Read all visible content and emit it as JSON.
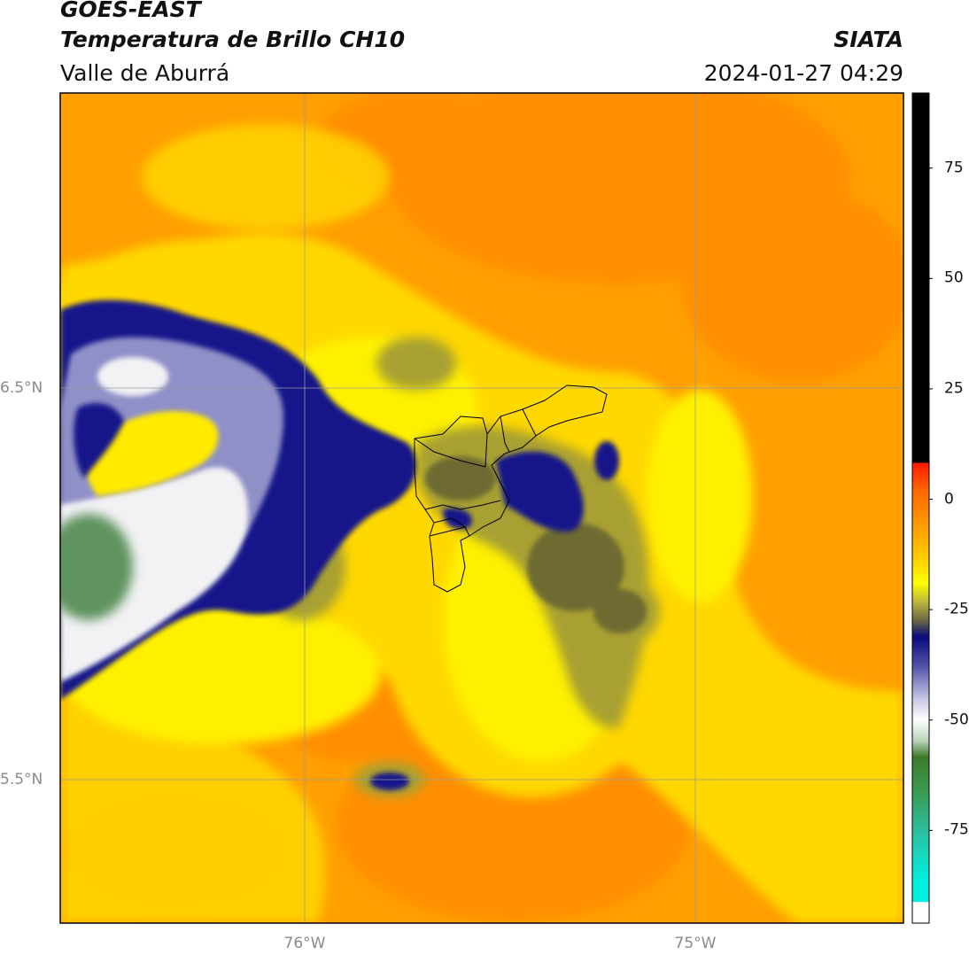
{
  "header": {
    "title_line1": "GOES-EAST",
    "title_line2": "Temperatura de Brillo CH10",
    "subtitle": "Valle de Aburrá",
    "agency": "SIATA",
    "datetime": "2024-01-27 04:29"
  },
  "map": {
    "lat_labels": [
      "6.5°N",
      "5.5°N"
    ],
    "lon_labels": [
      "76°W",
      "75°W"
    ],
    "colors": {
      "background_orange": "#ff9a00",
      "warm_yellow": "#ffe600",
      "olive": "#8c8c30",
      "navy": "#0a0a80",
      "white": "#ffffff",
      "green": "#4e8a4e",
      "boundary": "#000000",
      "gridline": "#9a9a9a"
    }
  },
  "colorbar": {
    "ticks": [
      {
        "value": 75,
        "label": "75"
      },
      {
        "value": 50,
        "label": "50"
      },
      {
        "value": 25,
        "label": "25"
      },
      {
        "value": 0,
        "label": "0"
      },
      {
        "value": -25,
        "label": "-25"
      },
      {
        "value": -50,
        "label": "-50"
      },
      {
        "value": -75,
        "label": "-75"
      }
    ],
    "range": [
      -96,
      92
    ]
  }
}
